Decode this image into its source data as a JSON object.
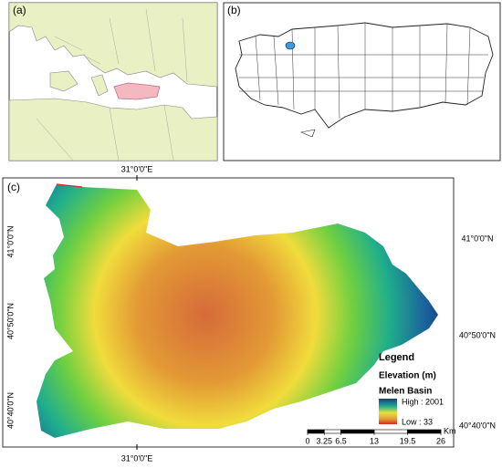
{
  "panels": {
    "a": {
      "label": "(a)"
    },
    "b": {
      "label": "(b)"
    },
    "c": {
      "label": "(c)",
      "top_label": "31°0'0\"E",
      "bottom_label": "31°0'0\"E",
      "left_labels": [
        "41°0'0\"N",
        "40°50'0\"N",
        "40°40'0\"N"
      ],
      "right_labels": [
        "41°0'0\"N",
        "40°50'0\"N",
        "40°40'0\"N"
      ],
      "legend": {
        "title": "Legend",
        "subtitle": "Elevation (m)",
        "layer": "Melen Basin",
        "high": "High : 2001",
        "low": "Low : 33"
      },
      "scale": {
        "ticks": [
          0,
          3.25,
          6.5,
          13,
          19.5,
          26
        ],
        "unit": "Km"
      }
    }
  }
}
